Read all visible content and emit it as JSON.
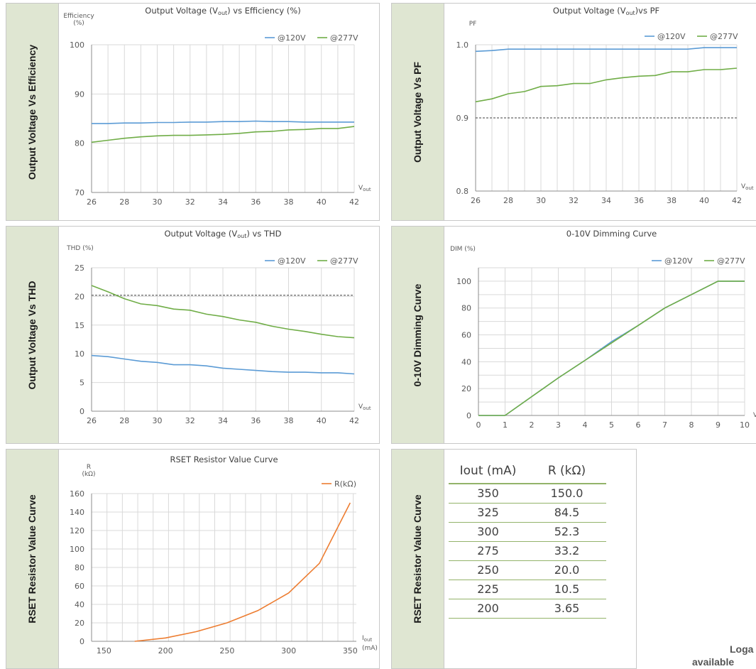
{
  "panels": {
    "eff": {
      "side": "Output Voltage Vs Efficiency"
    },
    "pf": {
      "side": "Output Voltage Vs PF"
    },
    "thd": {
      "side": "Output Voltage Vs THD"
    },
    "dim": {
      "side": "0-10V Dimming Curve"
    },
    "rset": {
      "side": "RSET Resistor Value Curve"
    },
    "table": {
      "side": "RSET Resistor Value Curve"
    }
  },
  "chart_data": [
    {
      "id": "eff",
      "type": "line",
      "title": "Output Voltage (Vout) vs Efficiency (%)",
      "ylabel": "Efficiency (%)",
      "xlabel": "Vout",
      "xlim": [
        26,
        42
      ],
      "ylim": [
        70,
        100
      ],
      "xticks": [
        26,
        28,
        30,
        32,
        34,
        36,
        38,
        40,
        42
      ],
      "yticks": [
        70,
        80,
        90,
        100
      ],
      "x": [
        26,
        27,
        28,
        29,
        30,
        31,
        32,
        33,
        34,
        35,
        36,
        37,
        38,
        39,
        40,
        41,
        42
      ],
      "series": [
        {
          "name": "@120V",
          "color": "#5b9bd5",
          "values": [
            84.0,
            84.0,
            84.1,
            84.1,
            84.2,
            84.2,
            84.3,
            84.3,
            84.4,
            84.4,
            84.5,
            84.4,
            84.4,
            84.3,
            84.3,
            84.3,
            84.3
          ]
        },
        {
          "name": "@277V",
          "color": "#70ad47",
          "values": [
            80.2,
            80.6,
            81.0,
            81.3,
            81.5,
            81.6,
            81.6,
            81.7,
            81.8,
            82.0,
            82.3,
            82.4,
            82.7,
            82.8,
            83.0,
            83.0,
            83.4
          ]
        }
      ]
    },
    {
      "id": "pf",
      "type": "line",
      "title": "Output Voltage (Vout)vs PF",
      "ylabel": "PF",
      "xlabel": "Vout",
      "xlim": [
        26,
        42
      ],
      "ylim": [
        0.8,
        1.0
      ],
      "xticks": [
        26,
        28,
        30,
        32,
        34,
        36,
        38,
        40,
        42
      ],
      "yticks": [
        0.8,
        0.9,
        1.0
      ],
      "ytick_labels": [
        "0.8",
        "0.9",
        "1.0"
      ],
      "reference_line": 0.9,
      "x": [
        26,
        27,
        28,
        29,
        30,
        31,
        32,
        33,
        34,
        35,
        36,
        37,
        38,
        39,
        40,
        41,
        42
      ],
      "series": [
        {
          "name": "@120V",
          "color": "#5b9bd5",
          "values": [
            0.991,
            0.992,
            0.994,
            0.994,
            0.994,
            0.994,
            0.994,
            0.994,
            0.994,
            0.994,
            0.994,
            0.994,
            0.994,
            0.994,
            0.996,
            0.996,
            0.996
          ]
        },
        {
          "name": "@277V",
          "color": "#70ad47",
          "values": [
            0.922,
            0.926,
            0.933,
            0.936,
            0.943,
            0.944,
            0.947,
            0.947,
            0.952,
            0.955,
            0.957,
            0.958,
            0.963,
            0.963,
            0.966,
            0.966,
            0.968
          ]
        }
      ]
    },
    {
      "id": "thd",
      "type": "line",
      "title": "Output Voltage (Vout) vs THD",
      "ylabel": "THD (%)",
      "xlabel": "Vout",
      "xlim": [
        26,
        42
      ],
      "ylim": [
        0,
        25
      ],
      "xticks": [
        26,
        28,
        30,
        32,
        34,
        36,
        38,
        40,
        42
      ],
      "yticks": [
        0,
        5,
        10,
        15,
        20,
        25
      ],
      "reference_line": 20.2,
      "x": [
        26,
        27,
        28,
        29,
        30,
        31,
        32,
        33,
        34,
        35,
        36,
        37,
        38,
        39,
        40,
        41,
        42
      ],
      "series": [
        {
          "name": "@120V",
          "color": "#5b9bd5",
          "values": [
            9.7,
            9.5,
            9.1,
            8.7,
            8.5,
            8.1,
            8.1,
            7.9,
            7.5,
            7.3,
            7.1,
            6.9,
            6.8,
            6.8,
            6.7,
            6.7,
            6.5
          ]
        },
        {
          "name": "@277V",
          "color": "#70ad47",
          "values": [
            21.9,
            20.8,
            19.6,
            18.7,
            18.4,
            17.8,
            17.6,
            16.9,
            16.5,
            15.9,
            15.5,
            14.8,
            14.3,
            13.9,
            13.4,
            13.0,
            12.8
          ]
        }
      ]
    },
    {
      "id": "dim",
      "type": "line",
      "title": "0-10V Dimming Curve",
      "ylabel": "DIM (%)",
      "xlabel": "V",
      "xlim": [
        0,
        10
      ],
      "ylim": [
        0,
        110
      ],
      "xticks": [
        0,
        1,
        2,
        3,
        4,
        5,
        6,
        7,
        8,
        9,
        10
      ],
      "yticks": [
        0,
        20,
        40,
        60,
        80,
        100
      ],
      "x": [
        0,
        1,
        2,
        3,
        4,
        5,
        6,
        7,
        8,
        9,
        10
      ],
      "series": [
        {
          "name": "@120V",
          "color": "#5b9bd5",
          "values": [
            0,
            0,
            14,
            28,
            41,
            55,
            67,
            80,
            90,
            100,
            100
          ]
        },
        {
          "name": "@277V",
          "color": "#70ad47",
          "values": [
            0,
            0,
            14,
            28,
            41,
            54,
            67,
            80,
            90,
            100,
            100
          ]
        }
      ]
    },
    {
      "id": "rset",
      "type": "line",
      "title": "RSET Resistor Value Curve",
      "ylabel": "R (kΩ)",
      "xlabel": "Iout (mA)",
      "xlim": [
        140,
        355
      ],
      "ylim": [
        0,
        160
      ],
      "xticks": [
        150,
        200,
        250,
        300,
        350
      ],
      "yticks": [
        0,
        20,
        40,
        60,
        80,
        100,
        120,
        140,
        160
      ],
      "x": [
        175,
        200,
        225,
        250,
        275,
        300,
        325,
        350
      ],
      "series": [
        {
          "name": "R(kΩ)",
          "color": "#ed7d31",
          "values": [
            0,
            3.65,
            10.5,
            20.0,
            33.2,
            52.3,
            84.5,
            150.0
          ]
        }
      ]
    }
  ],
  "rset_table": {
    "headers": [
      "Iout (mA)",
      "R (kΩ)"
    ],
    "rows": [
      [
        "350",
        "150.0"
      ],
      [
        "325",
        "84.5"
      ],
      [
        "300",
        "52.3"
      ],
      [
        "275",
        "33.2"
      ],
      [
        "250",
        "20.0"
      ],
      [
        "225",
        "10.5"
      ],
      [
        "200",
        "3.65"
      ]
    ]
  },
  "footer_note": {
    "line1": "Loga",
    "line2": "available"
  }
}
